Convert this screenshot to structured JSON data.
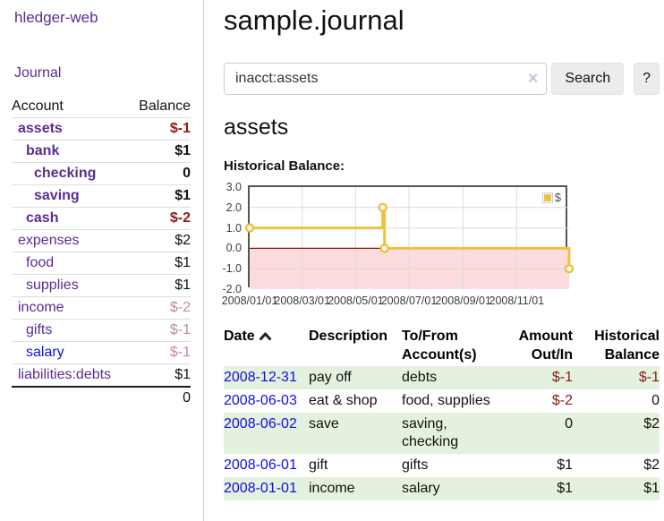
{
  "header": {
    "title": "sample.journal"
  },
  "search": {
    "value": "inacct:assets",
    "clear_icon": "×",
    "button_label": "Search",
    "help_label": "?"
  },
  "main": {
    "account_title": "assets"
  },
  "sidebar": {
    "brand": "hledger-web",
    "journal_label": "Journal",
    "accounts": {
      "header_account": "Account",
      "header_balance": "Balance",
      "rows": [
        {
          "name": "assets",
          "depth": 1,
          "in_view": true,
          "balance": "$-1",
          "balance_style": "strong-negative"
        },
        {
          "name": "bank",
          "depth": 2,
          "in_view": true,
          "balance": "$1",
          "balance_style": "normal"
        },
        {
          "name": "checking",
          "depth": 3,
          "in_view": true,
          "balance": "0",
          "balance_style": "normal"
        },
        {
          "name": "saving",
          "depth": 3,
          "in_view": true,
          "balance": "$1",
          "balance_style": "normal"
        },
        {
          "name": "cash",
          "depth": 2,
          "in_view": true,
          "balance": "$-2",
          "balance_style": "strong-negative"
        },
        {
          "name": "expenses",
          "depth": 1,
          "in_view": false,
          "balance": "$2",
          "balance_style": "normal"
        },
        {
          "name": "food",
          "depth": 2,
          "in_view": false,
          "balance": "$1",
          "balance_style": "normal"
        },
        {
          "name": "supplies",
          "depth": 2,
          "in_view": false,
          "balance": "$1",
          "balance_style": "normal"
        },
        {
          "name": "income",
          "depth": 1,
          "in_view": false,
          "balance": "$-2",
          "balance_style": "muted-negative"
        },
        {
          "name": "gifts",
          "depth": 2,
          "in_view": false,
          "balance": "$-1",
          "balance_style": "muted-negative"
        },
        {
          "name": "salary",
          "depth": 2,
          "in_view": false,
          "link_color": "blue",
          "balance": "$-1",
          "balance_style": "muted-negative"
        },
        {
          "name": "liabilities:debts",
          "depth": 1,
          "in_view": false,
          "balance": "$1",
          "balance_style": "normal"
        }
      ],
      "total": "0"
    }
  },
  "chart_data": {
    "type": "line",
    "title": "Historical Balance:",
    "step": true,
    "series": [
      {
        "name": "$",
        "color": "#edc240",
        "points": [
          [
            "2008-01-01",
            1
          ],
          [
            "2008-06-01",
            2
          ],
          [
            "2008-06-03",
            0
          ],
          [
            "2008-12-31",
            -1
          ]
        ]
      }
    ],
    "xlim": [
      "2008-01-01",
      "2008-12-31"
    ],
    "ylim": [
      -2,
      3
    ],
    "x_tick_labels": [
      "2008/01/01",
      "2008/03/01",
      "2008/05/01",
      "2008/07/01",
      "2008/09/01",
      "2008/11/01"
    ],
    "y_tick_labels": [
      "3.0",
      "2.0",
      "1.0",
      "0.0",
      "-1.0",
      "-2.0"
    ],
    "grid": true,
    "legend": {
      "position": "top-right",
      "label": "$"
    },
    "negative_region_color": "#fcdcdc",
    "zero_line_color": "#8b1212",
    "xlabel": "",
    "ylabel": ""
  },
  "register": {
    "columns": [
      {
        "line1": "Date",
        "line2": "",
        "sorted": "ascending"
      },
      {
        "line1": "Description",
        "line2": ""
      },
      {
        "line1": "To/From",
        "line2": "Account(s)"
      },
      {
        "line1": "Amount",
        "line2": "Out/In",
        "align": "right"
      },
      {
        "line1": "Historical",
        "line2": "Balance",
        "align": "right"
      }
    ],
    "rows": [
      {
        "date": "2008-12-31",
        "description": "pay off",
        "accounts": "debts",
        "amount": "$-1",
        "amount_negative": true,
        "balance": "$-1",
        "balance_negative": true
      },
      {
        "date": "2008-06-03",
        "description": "eat & shop",
        "accounts": "food, supplies",
        "amount": "$-2",
        "amount_negative": true,
        "balance": "0",
        "balance_negative": false
      },
      {
        "date": "2008-06-02",
        "description": "save",
        "accounts": "saving, checking",
        "amount": "0",
        "amount_negative": false,
        "balance": "$2",
        "balance_negative": false
      },
      {
        "date": "2008-06-01",
        "description": "gift",
        "accounts": "gifts",
        "amount": "$1",
        "amount_negative": false,
        "balance": "$2",
        "balance_negative": false
      },
      {
        "date": "2008-01-01",
        "description": "income",
        "accounts": "salary",
        "amount": "$1",
        "amount_negative": false,
        "balance": "$1",
        "balance_negative": false
      }
    ]
  },
  "colors": {
    "purple_link": "#5b2d90",
    "blue_link": "#0f0fe0",
    "negative_strong": "#8b1a1a",
    "negative_muted": "#c08d8d",
    "row_green": "#e4f1de",
    "chart_line": "#edc240",
    "chart_negative_fill": "#fcdcdc",
    "chart_zero_line": "#8b1212",
    "chart_border": "#545454"
  }
}
